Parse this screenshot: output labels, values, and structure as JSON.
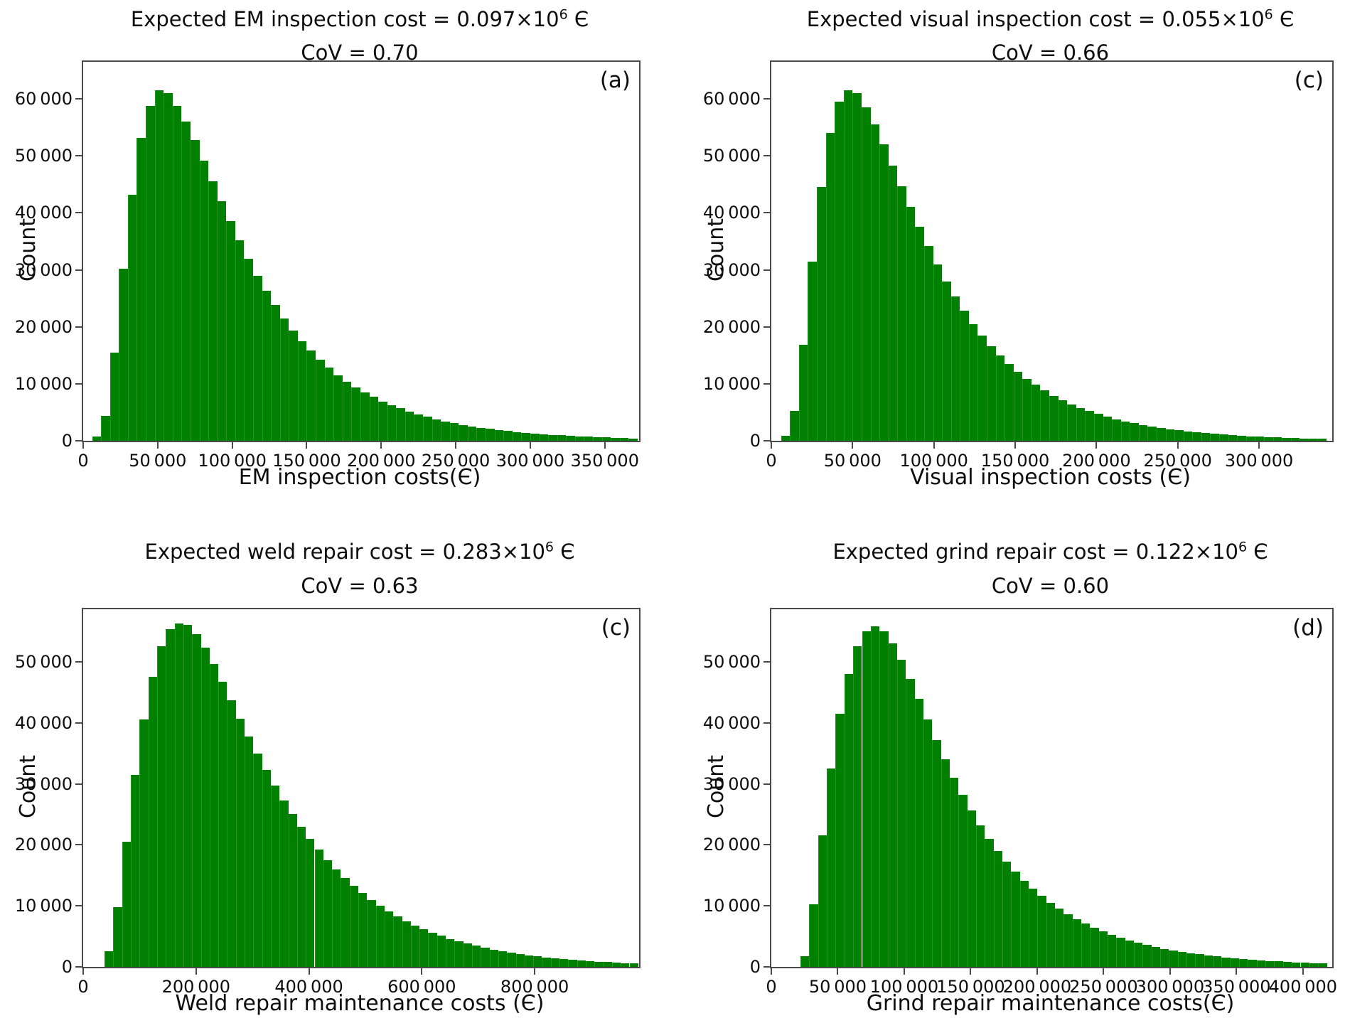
{
  "figure": {
    "background": "#ffffff",
    "bar_color": "#008000",
    "bar_edge_color": "#259425",
    "axis_color": "#4a4a4a",
    "text_color": "#0d0d0d"
  },
  "chart_data": [
    {
      "type": "bar",
      "subtype": "histogram",
      "title": "Expected EM inspection cost = 0.097×10⁶ Є",
      "title_parts": {
        "prefix": "Expected EM inspection cost = 0.097×10",
        "exponent": "6",
        "suffix": " Є"
      },
      "subtitle": "CoV = 0.70",
      "panel": "(a)",
      "xlabel": "EM inspection costs(Є)",
      "ylabel": "Count",
      "xlim": [
        0,
        373000
      ],
      "ylim": [
        0,
        66500
      ],
      "xticks": [
        0,
        50000,
        100000,
        150000,
        200000,
        250000,
        300000,
        350000
      ],
      "yticks": [
        0,
        10000,
        20000,
        30000,
        40000,
        50000,
        60000
      ],
      "grid": false,
      "legend": null,
      "bin_start": 6000,
      "bin_width": 6000,
      "counts": [
        700,
        4400,
        15500,
        30200,
        43200,
        53200,
        58800,
        61500,
        61000,
        58800,
        56000,
        52800,
        49200,
        45600,
        42000,
        38500,
        35200,
        32000,
        29000,
        26300,
        23800,
        21500,
        19400,
        17500,
        15800,
        14200,
        12800,
        11500,
        10400,
        9400,
        8500,
        7700,
        6900,
        6300,
        5700,
        5100,
        4600,
        4200,
        3800,
        3400,
        3100,
        2800,
        2500,
        2300,
        2100,
        1900,
        1700,
        1550,
        1400,
        1270,
        1150,
        1040,
        940,
        850,
        770,
        700,
        630,
        570,
        520,
        470,
        430
      ]
    },
    {
      "type": "bar",
      "subtype": "histogram",
      "title": "Expected visual inspection cost = 0.055×10⁶ Є",
      "title_parts": {
        "prefix": "Expected visual inspection cost = 0.055×10",
        "exponent": "6",
        "suffix": " Є"
      },
      "subtitle": "CoV = 0.66",
      "panel": "(c)",
      "xlabel": "Visual inspection costs (Є)",
      "ylabel": "Count",
      "xlim": [
        0,
        345000
      ],
      "ylim": [
        0,
        66500
      ],
      "xticks": [
        0,
        50000,
        100000,
        150000,
        200000,
        250000,
        300000
      ],
      "yticks": [
        0,
        10000,
        20000,
        30000,
        40000,
        50000,
        60000
      ],
      "grid": false,
      "legend": null,
      "bin_start": 6000,
      "bin_width": 5500,
      "counts": [
        900,
        5200,
        16800,
        31500,
        44500,
        54000,
        59500,
        61500,
        61000,
        58500,
        55500,
        52000,
        48300,
        44700,
        41000,
        37500,
        34200,
        31000,
        28000,
        25300,
        22800,
        20500,
        18500,
        16600,
        15000,
        13500,
        12100,
        10900,
        9800,
        8800,
        7900,
        7100,
        6400,
        5800,
        5200,
        4700,
        4200,
        3800,
        3400,
        3100,
        2800,
        2500,
        2250,
        2050,
        1850,
        1650,
        1500,
        1350,
        1200,
        1100,
        990,
        890,
        800,
        720,
        650,
        590,
        530,
        480,
        430,
        390,
        350
      ]
    },
    {
      "type": "bar",
      "subtype": "histogram",
      "title": "Expected weld repair cost = 0.283×10⁶ Є",
      "title_parts": {
        "prefix": "Expected weld repair cost = 0.283×10",
        "exponent": "6",
        "suffix": " Є"
      },
      "subtitle": "CoV = 0.63",
      "panel": "(c)",
      "xlabel": "Weld repair maintenance costs (Є)",
      "ylabel": "Count",
      "xlim": [
        0,
        985000
      ],
      "ylim": [
        0,
        58600
      ],
      "xticks": [
        0,
        200000,
        400000,
        600000,
        800000
      ],
      "yticks": [
        0,
        10000,
        20000,
        30000,
        40000,
        50000
      ],
      "grid": false,
      "legend": null,
      "bin_start": 38000,
      "bin_width": 15500,
      "counts": [
        2600,
        9800,
        20500,
        31500,
        40500,
        47500,
        52500,
        55300,
        56300,
        56000,
        54500,
        52300,
        49600,
        46700,
        43700,
        40700,
        37800,
        35000,
        32300,
        29700,
        27300,
        25000,
        22900,
        21000,
        19200,
        17500,
        16000,
        14600,
        13300,
        12100,
        11000,
        10000,
        9100,
        8300,
        7500,
        6800,
        6200,
        5600,
        5100,
        4600,
        4200,
        3800,
        3450,
        3100,
        2800,
        2550,
        2300,
        2100,
        1900,
        1720,
        1560,
        1410,
        1280,
        1160,
        1050,
        950,
        860,
        780,
        700,
        640,
        580
      ]
    },
    {
      "type": "bar",
      "subtype": "histogram",
      "title": "Expected grind repair cost = 0.122×10⁶ Є",
      "title_parts": {
        "prefix": "Expected grind repair cost = 0.122×10",
        "exponent": "6",
        "suffix": " Є"
      },
      "subtitle": "CoV = 0.60",
      "panel": "(d)",
      "xlabel": "Grind repair maintenance costs(Є)",
      "ylabel": "Count",
      "xlim": [
        0,
        422000
      ],
      "ylim": [
        0,
        58600
      ],
      "xticks": [
        0,
        50000,
        100000,
        150000,
        200000,
        250000,
        300000,
        350000,
        400000
      ],
      "yticks": [
        0,
        10000,
        20000,
        30000,
        40000,
        50000
      ],
      "grid": false,
      "legend": null,
      "bin_start": 22000,
      "bin_width": 6600,
      "counts": [
        1800,
        10200,
        21500,
        32500,
        41500,
        48000,
        52500,
        55000,
        55800,
        55000,
        53000,
        50300,
        47200,
        43900,
        40500,
        37200,
        34000,
        31000,
        28200,
        25600,
        23200,
        21000,
        19000,
        17200,
        15600,
        14100,
        12800,
        11600,
        10500,
        9500,
        8600,
        7800,
        7100,
        6400,
        5800,
        5300,
        4800,
        4350,
        3950,
        3600,
        3250,
        2950,
        2700,
        2450,
        2250,
        2050,
        1850,
        1700,
        1550,
        1400,
        1280,
        1170,
        1070,
        980,
        890,
        810,
        740,
        680,
        620,
        570
      ]
    }
  ]
}
